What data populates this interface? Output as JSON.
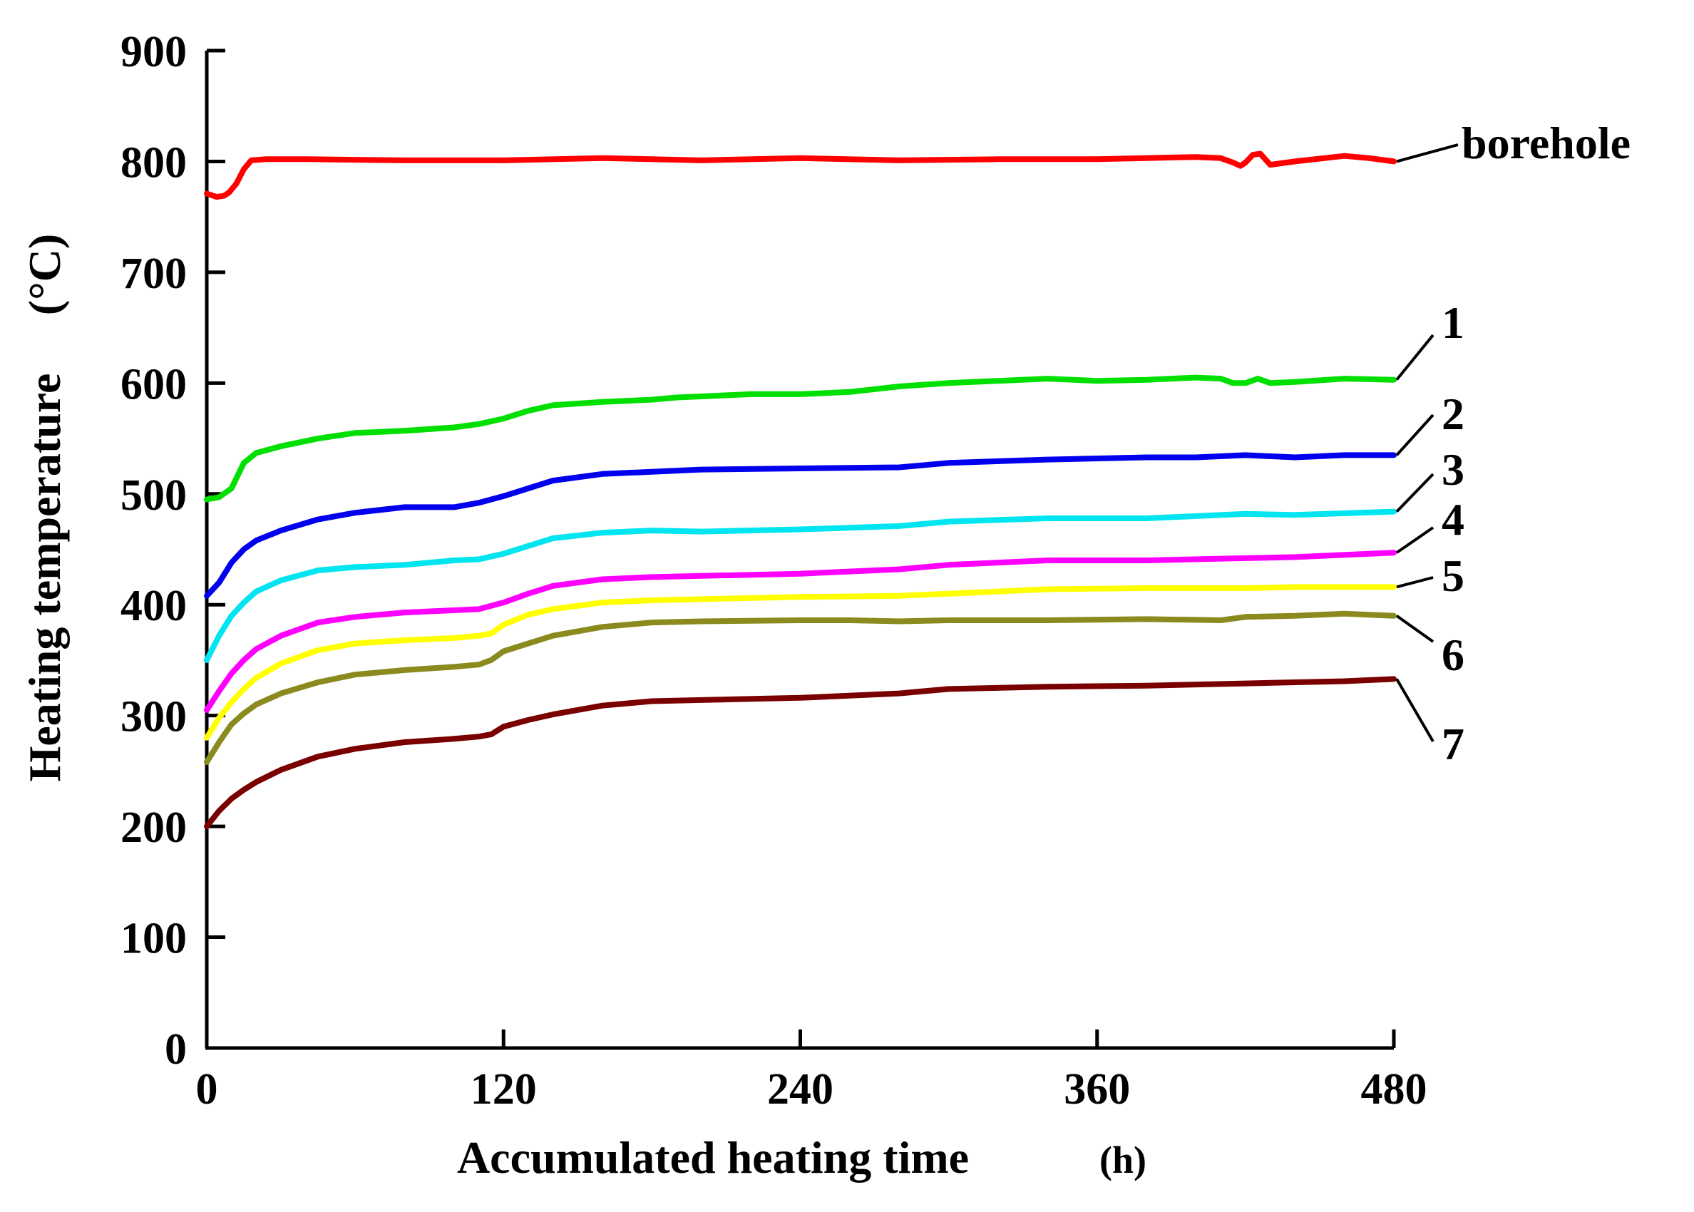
{
  "chart_data": {
    "type": "line",
    "title": "",
    "xlabel": "Accumulated heating time",
    "xlabel_unit": "(h)",
    "ylabel": "Heating temperature",
    "ylabel_unit": "(°C)",
    "xlim": [
      0,
      480
    ],
    "ylim": [
      0,
      900
    ],
    "xticks": [
      0,
      120,
      240,
      360,
      480
    ],
    "yticks": [
      0,
      100,
      200,
      300,
      400,
      500,
      600,
      700,
      800,
      900
    ],
    "grid": false,
    "legend": "inline labels at right end of each line",
    "series": [
      {
        "name": "borehole",
        "color": "#ff0000",
        "x": [
          0,
          4,
          7,
          9,
          12,
          15,
          18,
          24,
          40,
          80,
          120,
          160,
          200,
          240,
          280,
          320,
          360,
          400,
          410,
          415,
          418,
          420,
          423,
          426,
          430,
          440,
          460,
          470,
          480
        ],
        "y": [
          771,
          768,
          769,
          772,
          780,
          793,
          801,
          802,
          802,
          801,
          801,
          803,
          801,
          803,
          801,
          802,
          802,
          804,
          803,
          799,
          796,
          799,
          806,
          807,
          797,
          800,
          805,
          803,
          800
        ]
      },
      {
        "name": "1",
        "color": "#00e000",
        "x": [
          0,
          5,
          10,
          15,
          20,
          30,
          45,
          60,
          80,
          100,
          110,
          120,
          130,
          140,
          160,
          180,
          190,
          200,
          220,
          240,
          260,
          280,
          300,
          320,
          340,
          360,
          380,
          400,
          410,
          415,
          420,
          425,
          430,
          440,
          460,
          480
        ],
        "y": [
          495,
          497,
          505,
          528,
          537,
          543,
          550,
          555,
          557,
          560,
          563,
          568,
          575,
          580,
          583,
          585,
          587,
          588,
          590,
          590,
          592,
          597,
          600,
          602,
          604,
          602,
          603,
          605,
          604,
          600,
          600,
          604,
          600,
          601,
          604,
          603
        ]
      },
      {
        "name": "2",
        "color": "#0000ee",
        "x": [
          0,
          5,
          10,
          15,
          20,
          30,
          45,
          60,
          80,
          100,
          110,
          120,
          130,
          140,
          160,
          180,
          200,
          240,
          280,
          300,
          340,
          380,
          400,
          420,
          440,
          460,
          480
        ],
        "y": [
          408,
          420,
          438,
          450,
          458,
          467,
          477,
          483,
          488,
          488,
          492,
          498,
          505,
          512,
          518,
          520,
          522,
          523,
          524,
          528,
          531,
          533,
          533,
          535,
          533,
          535,
          535
        ]
      },
      {
        "name": "3",
        "color": "#00e5f0",
        "x": [
          0,
          5,
          10,
          15,
          20,
          30,
          45,
          60,
          80,
          100,
          110,
          120,
          130,
          140,
          160,
          180,
          200,
          240,
          280,
          300,
          340,
          380,
          420,
          440,
          480
        ],
        "y": [
          350,
          372,
          390,
          402,
          412,
          422,
          431,
          434,
          436,
          440,
          441,
          446,
          453,
          460,
          465,
          467,
          466,
          468,
          471,
          475,
          478,
          478,
          482,
          481,
          484
        ]
      },
      {
        "name": "4",
        "color": "#ff00ff",
        "x": [
          0,
          5,
          10,
          15,
          20,
          30,
          45,
          60,
          80,
          100,
          110,
          120,
          130,
          140,
          160,
          180,
          200,
          240,
          280,
          300,
          340,
          380,
          420,
          440,
          480
        ],
        "y": [
          305,
          322,
          338,
          350,
          360,
          372,
          384,
          389,
          393,
          395,
          396,
          402,
          410,
          417,
          423,
          425,
          426,
          428,
          432,
          436,
          440,
          440,
          442,
          443,
          447
        ]
      },
      {
        "name": "5",
        "color": "#ffff00",
        "x": [
          0,
          5,
          10,
          15,
          20,
          30,
          45,
          60,
          80,
          100,
          110,
          115,
          120,
          130,
          140,
          160,
          180,
          200,
          240,
          280,
          300,
          340,
          380,
          420,
          440,
          480
        ],
        "y": [
          280,
          298,
          312,
          324,
          334,
          347,
          359,
          365,
          368,
          370,
          372,
          374,
          382,
          391,
          396,
          402,
          404,
          405,
          407,
          408,
          410,
          414,
          415,
          415,
          416,
          416
        ]
      },
      {
        "name": "6",
        "color": "#8a8a1e",
        "x": [
          0,
          5,
          10,
          15,
          20,
          30,
          45,
          60,
          80,
          100,
          110,
          115,
          120,
          130,
          140,
          160,
          180,
          200,
          240,
          260,
          280,
          300,
          340,
          380,
          410,
          420,
          440,
          460,
          480
        ],
        "y": [
          258,
          276,
          292,
          302,
          310,
          320,
          330,
          337,
          341,
          344,
          346,
          350,
          358,
          365,
          372,
          380,
          384,
          385,
          386,
          386,
          385,
          386,
          386,
          387,
          386,
          389,
          390,
          392,
          390
        ]
      },
      {
        "name": "7",
        "color": "#7a0000",
        "x": [
          0,
          5,
          10,
          15,
          20,
          30,
          45,
          60,
          80,
          100,
          110,
          115,
          120,
          130,
          140,
          160,
          180,
          200,
          240,
          280,
          300,
          340,
          380,
          420,
          460,
          480
        ],
        "y": [
          200,
          214,
          225,
          233,
          240,
          251,
          263,
          270,
          276,
          279,
          281,
          283,
          290,
          296,
          301,
          309,
          313,
          314,
          316,
          320,
          324,
          326,
          327,
          329,
          331,
          333
        ]
      }
    ]
  }
}
